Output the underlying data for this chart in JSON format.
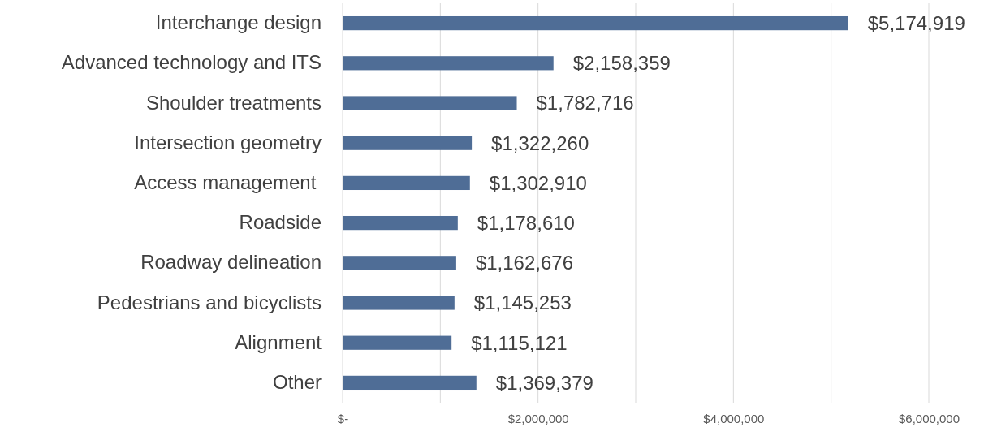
{
  "chart_data": {
    "type": "bar",
    "orientation": "horizontal",
    "categories": [
      "Interchange design",
      "Advanced technology and ITS",
      "Shoulder treatments",
      "Intersection geometry",
      "Access management ",
      "Roadside",
      "Roadway delineation",
      "Pedestrians and bicyclists",
      "Alignment",
      "Other"
    ],
    "values": [
      5174919,
      2158359,
      1782716,
      1322260,
      1302910,
      1178610,
      1162676,
      1145253,
      1115121,
      1369379
    ],
    "value_labels": [
      "$5,174,919",
      "$2,158,359",
      "$1,782,716",
      "$1,322,260",
      "$1,302,910",
      "$1,178,610",
      "$1,162,676",
      "$1,145,253",
      "$1,115,121",
      "$1,369,379"
    ],
    "color": "#4f6d96",
    "xlim": [
      0,
      6000000
    ],
    "xticks": [
      {
        "value": 0,
        "label": "$-"
      },
      {
        "value": 1000000,
        "label": null
      },
      {
        "value": 2000000,
        "label": "$2,000,000"
      },
      {
        "value": 3000000,
        "label": null
      },
      {
        "value": 4000000,
        "label": "$4,000,000"
      },
      {
        "value": 5000000,
        "label": null
      },
      {
        "value": 6000000,
        "label": "$6,000,000"
      }
    ],
    "grid": "x"
  }
}
